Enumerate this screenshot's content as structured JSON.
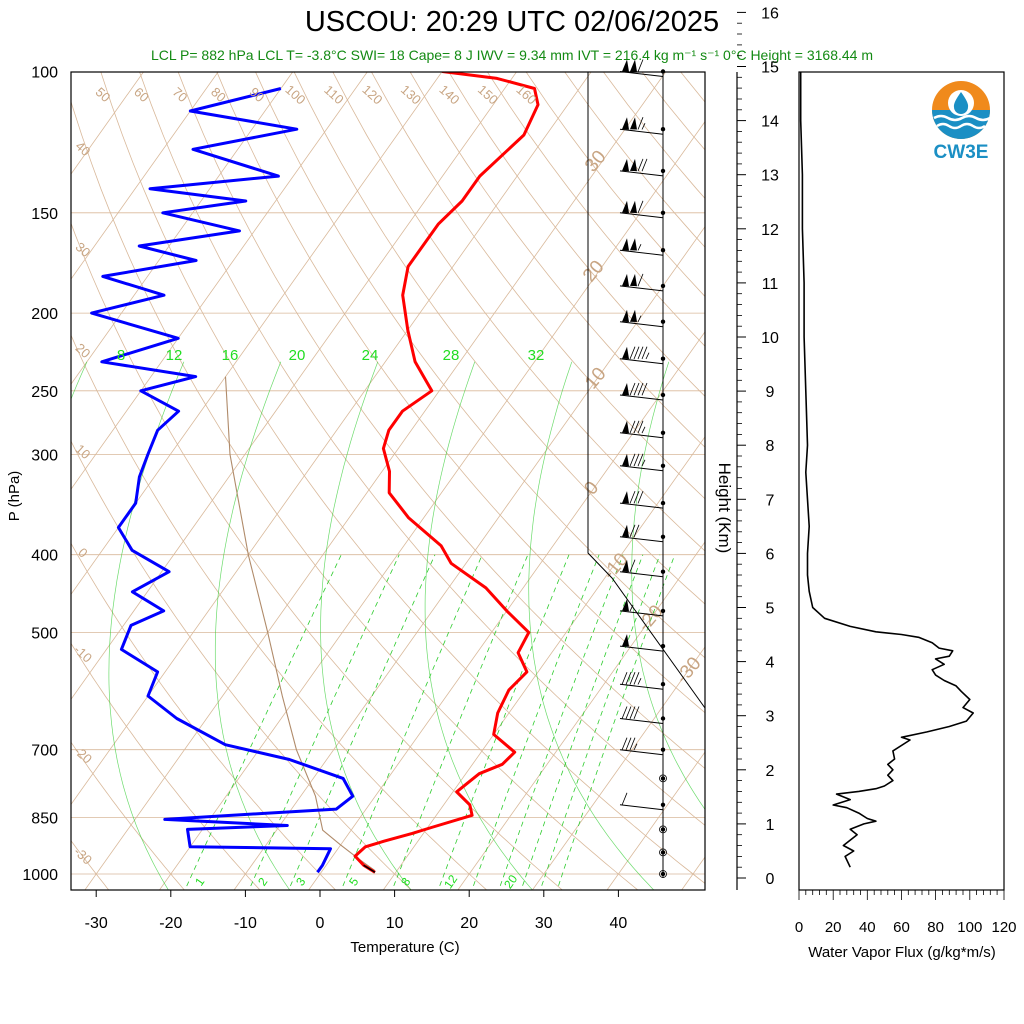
{
  "title": "USCOU: 20:29 UTC 02/06/2025",
  "subtitle": "LCL P= 882 hPa  LCL T= -3.8°C  SWI= 18  Cape= 8 J  IWV = 9.34 mm  IVT = 216.4 kg m⁻¹ s⁻¹  0°C Height = 3168.44 m",
  "logo": {
    "text": "CW3E",
    "colors": {
      "orange": "#f08a1c",
      "blue": "#1b8fc4"
    }
  },
  "colors": {
    "temperature": "#ff0000",
    "dewpoint": "#0000ff",
    "grid": "#d9b99b",
    "mixing_ratio": "#2ecc2e",
    "flux": "#000000",
    "subtitle": "#138a13"
  },
  "chart_data": [
    {
      "type": "line",
      "subtype": "skew-t",
      "xlabel": "Temperature (C)",
      "ylabel": "P (hPa)",
      "xlim": [
        -33,
        52
      ],
      "ylim": [
        1050,
        100
      ],
      "y_scale": "log",
      "x_ticks": [
        -30,
        -20,
        -10,
        0,
        10,
        20,
        30,
        40
      ],
      "p_ticks": [
        100,
        150,
        200,
        250,
        300,
        400,
        500,
        700,
        850,
        1000
      ],
      "mixing_ratio_labels": [
        1,
        2,
        3,
        5,
        8,
        12,
        20
      ],
      "dry_adiabat_labels_top": [
        50,
        60,
        70,
        80,
        90,
        100,
        110,
        120,
        130,
        140,
        150,
        160
      ],
      "moist_adiabat_labels_upper": [
        8,
        12,
        16,
        20,
        24,
        28,
        32
      ],
      "left_theta_labels": [
        40,
        30,
        20,
        10,
        0,
        -10,
        -20,
        -30
      ],
      "right_temp_labels": [
        30,
        20,
        10,
        0,
        -10,
        -20,
        -30
      ],
      "series": [
        {
          "role": "temperature",
          "x": [
            7.2,
            5.0,
            3.0,
            3.5,
            5.5,
            8.5,
            10.5,
            14.8,
            13.5,
            10.5,
            11.8,
            14.0,
            14.5,
            10.0,
            8.5,
            7.8,
            8.5,
            5.5,
            5.0,
            0.0,
            -5.0,
            -12.0,
            -15.0,
            -22.0,
            -27.0,
            -29.0,
            -32.0,
            -33.0,
            -33.0,
            -31.0,
            -36.0,
            -40.0,
            -44.0,
            -46.0,
            -46.0,
            -46.0,
            -45.0,
            -45.0,
            -43.0,
            -44.0,
            -46.0,
            -52.0,
            -60.0
          ],
          "p": [
            995,
            975,
            950,
            925,
            910,
            890,
            875,
            845,
            820,
            790,
            750,
            730,
            705,
            670,
            630,
            590,
            560,
            530,
            500,
            470,
            440,
            410,
            390,
            360,
            335,
            315,
            295,
            280,
            265,
            250,
            230,
            210,
            190,
            175,
            165,
            155,
            145,
            135,
            120,
            110,
            105,
            102,
            100
          ]
        },
        {
          "role": "dewpoint",
          "x": [
            -0.5,
            -0.5,
            -1.0,
            -20.0,
            -22.0,
            -9.0,
            -26.0,
            -13.0,
            -4.0,
            -3.0,
            -6.0,
            -15.0,
            -25.0,
            -34.0,
            -40.0,
            -41.0,
            -48.0,
            -49.0,
            -46.0,
            -52.0,
            -49.0,
            -56.0,
            -60.0,
            -60.0,
            -62.0,
            -63.0,
            -64.0,
            -63.0,
            -70.0,
            -64.0,
            -78.0,
            -70.0,
            -84.0,
            -76.0,
            -86.0,
            -75.0,
            -84.0,
            -72.0,
            -84.0,
            -74.0,
            -88.0,
            -72.0,
            -86.0,
            -74.0,
            -90.0,
            -80.0
          ],
          "p": [
            995,
            975,
            930,
            925,
            880,
            870,
            855,
            840,
            830,
            800,
            760,
            720,
            690,
            640,
            600,
            560,
            525,
            490,
            470,
            445,
            420,
            395,
            370,
            345,
            320,
            300,
            280,
            265,
            250,
            240,
            230,
            215,
            200,
            190,
            180,
            172,
            165,
            158,
            150,
            145,
            140,
            135,
            125,
            118,
            112,
            105
          ]
        }
      ],
      "parcel": {
        "x": [
          7.0,
          4.0,
          0.0,
          -3.8,
          -8.0,
          -15.0,
          -22.0,
          -30.0,
          -40.0,
          -52.0,
          -60.0
        ],
        "p": [
          990,
          960,
          920,
          882,
          800,
          700,
          600,
          500,
          400,
          300,
          240
        ]
      }
    },
    {
      "type": "barbs",
      "pressures": [
        100,
        118,
        133,
        150,
        167,
        185,
        205,
        228,
        253,
        282,
        310,
        345,
        380,
        420,
        470,
        520,
        580,
        640,
        700,
        760,
        820,
        880,
        940,
        1000
      ],
      "speeds_kt": [
        110,
        115,
        120,
        110,
        105,
        110,
        105,
        95,
        90,
        85,
        85,
        80,
        70,
        60,
        55,
        50,
        45,
        40,
        35,
        0,
        10,
        0,
        0,
        0
      ]
    },
    {
      "type": "line",
      "ylabel": "Height (Km)",
      "xlabel": "Water Vapor Flux (g/kg*m/s)",
      "xlim": [
        0,
        120
      ],
      "ylim": [
        -0.2,
        16.3
      ],
      "x_ticks": [
        0,
        20,
        40,
        60,
        80,
        100,
        120
      ],
      "y_ticks": [
        0,
        1,
        2,
        3,
        4,
        5,
        6,
        7,
        8,
        9,
        10,
        11,
        12,
        13,
        14,
        15,
        16
      ],
      "x": [
        30,
        27,
        32,
        26,
        34,
        30,
        38,
        45,
        40,
        35,
        28,
        20,
        30,
        22,
        35,
        45,
        50,
        55,
        52,
        55,
        52,
        56,
        55,
        65,
        60,
        75,
        88,
        98,
        102,
        96,
        100,
        95,
        92,
        85,
        80,
        78,
        85,
        80,
        88,
        90,
        82,
        78,
        70,
        60,
        45,
        30,
        15,
        8,
        6,
        5,
        5,
        6,
        5,
        4,
        5,
        4,
        3,
        3,
        2,
        2,
        1,
        1,
        0.5
      ],
      "y": [
        0.2,
        0.4,
        0.5,
        0.6,
        0.8,
        0.9,
        1.0,
        1.05,
        1.1,
        1.2,
        1.3,
        1.35,
        1.45,
        1.55,
        1.6,
        1.65,
        1.7,
        1.8,
        1.9,
        2.0,
        2.1,
        2.2,
        2.35,
        2.55,
        2.6,
        2.7,
        2.8,
        2.9,
        3.05,
        3.15,
        3.3,
        3.45,
        3.55,
        3.65,
        3.75,
        3.85,
        3.95,
        4.05,
        4.1,
        4.2,
        4.25,
        4.35,
        4.45,
        4.5,
        4.55,
        4.65,
        4.8,
        5.0,
        5.3,
        5.6,
        6.0,
        6.5,
        7.0,
        7.5,
        8.0,
        9.0,
        10.0,
        11.0,
        12.0,
        13.0,
        14.0,
        15.0,
        16.2
      ]
    }
  ]
}
